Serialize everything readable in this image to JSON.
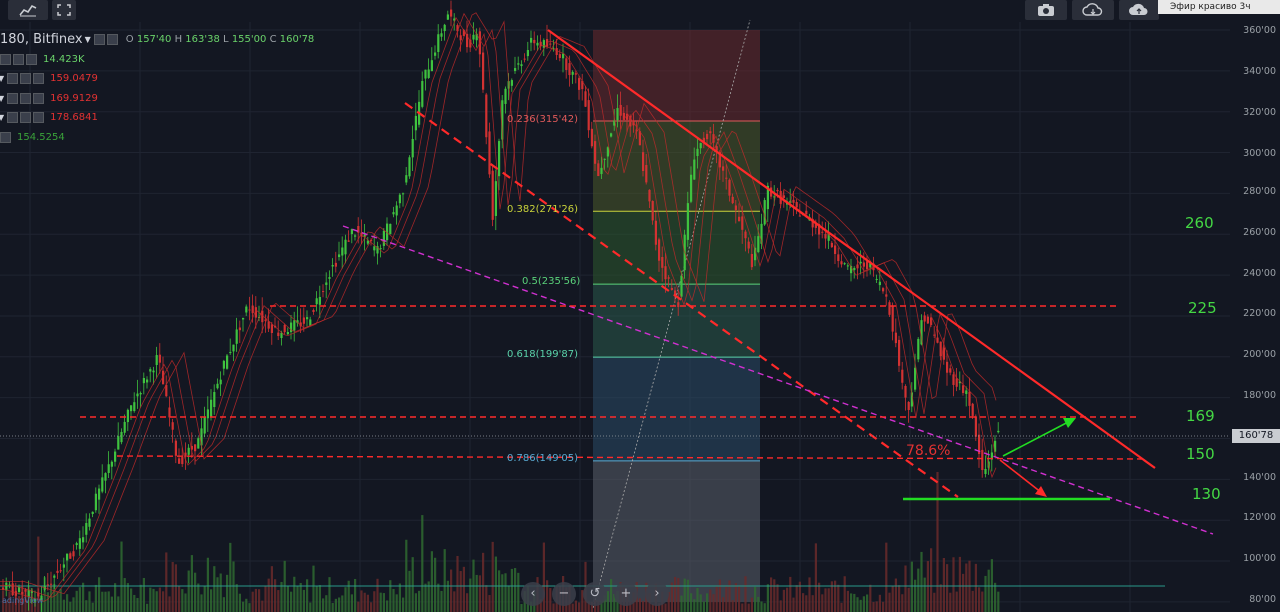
{
  "toolbar": {
    "items": [
      "chart-icon",
      "fullscreen-icon",
      "camera-icon",
      "cloud-down-icon",
      "cloud-up-icon"
    ]
  },
  "header": {
    "symbol": "180, Bitfinex",
    "open_label": "O",
    "open": "157'40",
    "high_label": "H",
    "high": "163'38",
    "low_label": "L",
    "low": "155'00",
    "close_label": "C",
    "close": "160'78"
  },
  "indicators": [
    {
      "value": "14.423K",
      "color": "#6ad36a"
    },
    {
      "value": "159.0479",
      "color": "#e23232"
    },
    {
      "value": "169.9129",
      "color": "#e23232"
    },
    {
      "value": "178.6841",
      "color": "#e23232"
    },
    {
      "value": "154.5254",
      "color": "#3aa23a"
    }
  ],
  "dropdown": {
    "label": "Эфир красиво 3ч"
  },
  "fibonacci": [
    {
      "label": "0.236(315'42)",
      "price": 315.42,
      "color": "#e05a5a"
    },
    {
      "label": "0.382(271'26)",
      "price": 271.26,
      "color": "#c9d23a"
    },
    {
      "label": "0.5(235'56)",
      "price": 235.56,
      "color": "#5ad27a"
    },
    {
      "label": "0.618(199'87)",
      "price": 199.87,
      "color": "#5ad2aa"
    },
    {
      "label": "0.786(149'05)",
      "price": 149.05,
      "color": "#5aaad2"
    }
  ],
  "annotations": {
    "level_260": "260",
    "level_225": "225",
    "level_169": "169",
    "level_150": "150",
    "level_130": "130",
    "retracement_pct": "78.6%"
  },
  "price_axis": {
    "ticks": [
      "360'00",
      "340'00",
      "320'00",
      "300'00",
      "280'00",
      "260'00",
      "240'00",
      "220'00",
      "200'00",
      "180'00",
      "160'00",
      "140'00",
      "120'00",
      "100'00",
      "80'00"
    ],
    "last_price": "160'78"
  },
  "navigation": {
    "zoom_out": "−",
    "reset": "↺",
    "zoom_in": "+",
    "forward": "›",
    "back": "‹"
  },
  "watermark": "adingView",
  "colors": {
    "background": "#131722",
    "bull": "#3fc23f",
    "bear": "#d23232",
    "trend": "#ff2a2a",
    "support": "#22dd22",
    "magenta": "#d030d0"
  }
}
